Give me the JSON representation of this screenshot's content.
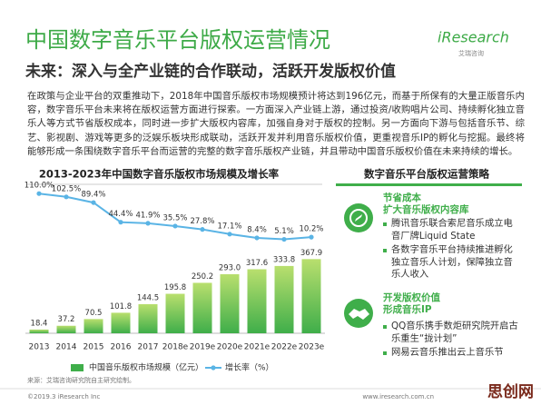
{
  "header": {
    "title": "中国数字音乐平台版权运营情况",
    "logo": "iResearch",
    "logo_sub": "艾瑞咨询"
  },
  "subtitle": "未来：深入与全产业链的合作联动，活跃开发版权价值",
  "body_text": "在政策与企业平台的双重推动下，2018年中国音乐版权市场规模预计将达到196亿元，而基于所保有的大量正版音乐内容，数字音乐平台未来将在版权运营方面进行探索。一方面深入产业链上游，通过投资/收购唱片公司、持续孵化独立音乐人等方式节省版权成本，同时进一步扩大版权内容库，加强自身对于版权的控制。另一方面向下游与包括音乐节、综艺、影视剧、游戏等更多的泛娱乐板块形成联动，活跃开发并利用音乐版权价值，更重视音乐IP的孵化与挖掘。最终将能够形成一条围绕数字音乐平台而运营的完整的数字音乐版权产业链，并且带动中国音乐版权价值在未来持续的增长。",
  "chart_data": {
    "type": "bar",
    "title": "2013-2023年中国数字音乐版权市场规模及增长率",
    "categories": [
      "2013",
      "2014",
      "2015",
      "2016",
      "2017",
      "2018e",
      "2019e",
      "2020e",
      "2021e",
      "2022e",
      "2023e"
    ],
    "series": [
      {
        "name": "中国音乐版权市场规模（亿元）",
        "type": "bar",
        "color": "#3fae4a",
        "values": [
          18.4,
          37.2,
          70.5,
          101.8,
          144.5,
          195.8,
          250.2,
          293.0,
          317.6,
          333.8,
          367.9
        ],
        "value_labels": [
          "18.4",
          "37.2",
          "70.5",
          "101.8",
          "144.5",
          "195.8",
          "250.2",
          "293.0",
          "317.6",
          "333.8",
          "367.9"
        ]
      },
      {
        "name": "增长率（%）",
        "type": "line",
        "axis": "y2",
        "color": "#5ab4e5",
        "values": [
          110.0,
          102.5,
          89.4,
          44.4,
          41.9,
          35.5,
          27.8,
          17.1,
          8.4,
          5.1,
          10.2
        ],
        "value_labels": [
          "110.0%",
          "102.5%",
          "89.4%",
          "44.4%",
          "41.9%",
          "35.5%",
          "27.8%",
          "17.1%",
          "8.4%",
          "5.1%",
          "10.2%"
        ]
      }
    ]
  },
  "strategy": {
    "title": "数字音乐平台版权运营策略",
    "items": [
      {
        "heading": [
          "节省成本",
          "扩大音乐版权内容库"
        ],
        "bullets": [
          "腾讯音乐联合索尼音乐成立电音厂牌Liquid State",
          "各数字音乐平台持续推进孵化独立音乐人计划，保障独立音乐人收入"
        ]
      },
      {
        "heading": [
          "开发版权价值",
          "形成音乐IP"
        ],
        "bullets": [
          "QQ音乐携手数炬研究院开启古乐重生“拢计划”",
          "网易云音乐推出云上音乐节"
        ]
      }
    ]
  },
  "source": "来源：艾瑞咨询研究院自主研究绘制。",
  "footer": {
    "copyright": "©2019.3 iResearch Inc",
    "url": "www.iresearch.com.cn",
    "watermark": "思创网"
  }
}
